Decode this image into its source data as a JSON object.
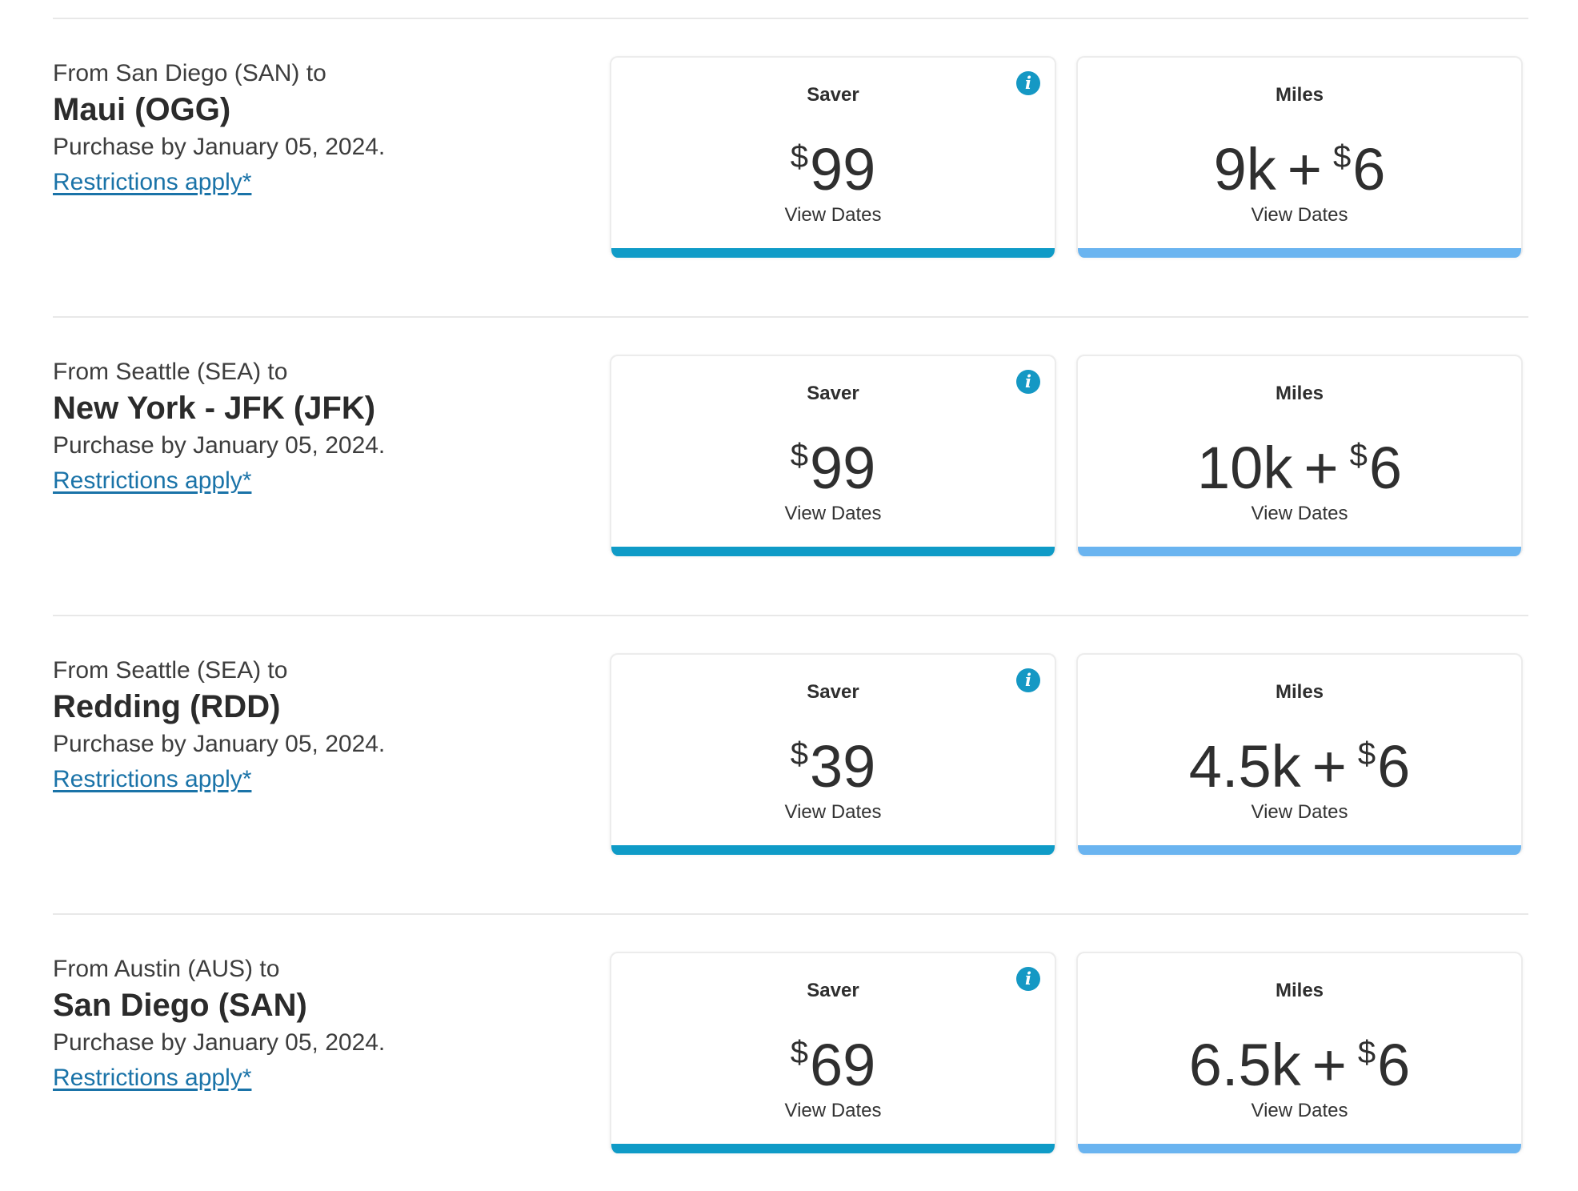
{
  "colors": {
    "saver_bar": "#0f9bc7",
    "miles_bar": "#6ab4f0",
    "info_icon": "#1598c4",
    "link": "#1a73a8"
  },
  "offers": [
    {
      "from": "From San Diego (SAN) to",
      "destination": "Maui (OGG)",
      "purchase_by": "Purchase by January 05, 2024.",
      "restrictions": "Restrictions apply*",
      "saver": {
        "label": "Saver",
        "currency": "$",
        "amount": "99",
        "action": "View Dates",
        "info_icon": "info-icon"
      },
      "miles": {
        "label": "Miles",
        "miles": "9k",
        "plus": "+",
        "currency": "$",
        "amount": "6",
        "action": "View Dates"
      }
    },
    {
      "from": "From Seattle (SEA) to",
      "destination": "New York - JFK (JFK)",
      "purchase_by": "Purchase by January 05, 2024.",
      "restrictions": "Restrictions apply*",
      "saver": {
        "label": "Saver",
        "currency": "$",
        "amount": "99",
        "action": "View Dates",
        "info_icon": "info-icon"
      },
      "miles": {
        "label": "Miles",
        "miles": "10k",
        "plus": "+",
        "currency": "$",
        "amount": "6",
        "action": "View Dates"
      }
    },
    {
      "from": "From Seattle (SEA) to",
      "destination": "Redding (RDD)",
      "purchase_by": "Purchase by January 05, 2024.",
      "restrictions": "Restrictions apply*",
      "saver": {
        "label": "Saver",
        "currency": "$",
        "amount": "39",
        "action": "View Dates",
        "info_icon": "info-icon"
      },
      "miles": {
        "label": "Miles",
        "miles": "4.5k",
        "plus": "+",
        "currency": "$",
        "amount": "6",
        "action": "View Dates"
      }
    },
    {
      "from": "From Austin (AUS) to",
      "destination": "San Diego (SAN)",
      "purchase_by": "Purchase by January 05, 2024.",
      "restrictions": "Restrictions apply*",
      "saver": {
        "label": "Saver",
        "currency": "$",
        "amount": "69",
        "action": "View Dates",
        "info_icon": "info-icon"
      },
      "miles": {
        "label": "Miles",
        "miles": "6.5k",
        "plus": "+",
        "currency": "$",
        "amount": "6",
        "action": "View Dates"
      }
    }
  ]
}
